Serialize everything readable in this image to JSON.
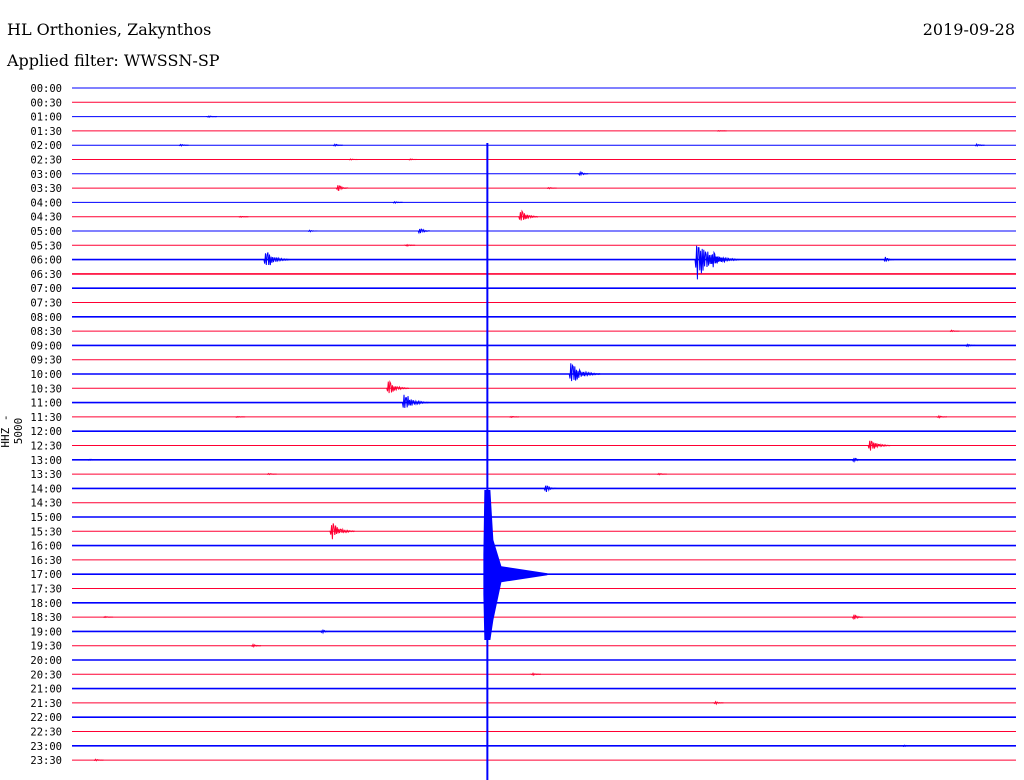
{
  "header": {
    "station": "HL Orthonies, Zakynthos",
    "filter": "Applied filter: WWSSN-SP",
    "date": "2019-09-28"
  },
  "chart_data": {
    "type": "line",
    "title": "HL Orthonies, Zakynthos",
    "ylabel": "HHZ - 5000",
    "minutes_per_row": 30,
    "colors": {
      "even": "#0000ff",
      "odd": "#ff0033"
    },
    "rows": [
      "00:00",
      "00:30",
      "01:00",
      "01:30",
      "02:00",
      "02:30",
      "03:00",
      "03:30",
      "04:00",
      "04:30",
      "05:00",
      "05:30",
      "06:00",
      "06:30",
      "07:00",
      "07:30",
      "08:00",
      "08:30",
      "09:00",
      "09:30",
      "10:00",
      "10:30",
      "11:00",
      "11:30",
      "12:00",
      "12:30",
      "13:00",
      "13:30",
      "14:00",
      "14:30",
      "15:00",
      "15:30",
      "16:00",
      "16:30",
      "17:00",
      "17:30",
      "18:00",
      "18:30",
      "19:00",
      "19:30",
      "20:00",
      "20:30",
      "21:00",
      "21:30",
      "22:00",
      "22:30",
      "23:00",
      "23:30"
    ],
    "events": [
      {
        "row": "01:00",
        "minute": 4.3,
        "amp": 4
      },
      {
        "row": "01:30",
        "minute": 20.5,
        "amp": 2
      },
      {
        "row": "02:00",
        "minute": 3.4,
        "amp": 5
      },
      {
        "row": "02:00",
        "minute": 8.3,
        "amp": 6
      },
      {
        "row": "02:00",
        "minute": 28.7,
        "amp": 7
      },
      {
        "row": "02:30",
        "minute": 8.8,
        "amp": 3
      },
      {
        "row": "02:30",
        "minute": 10.7,
        "amp": 3
      },
      {
        "row": "03:00",
        "minute": 16.1,
        "amp": 10
      },
      {
        "row": "03:30",
        "minute": 8.4,
        "amp": 14
      },
      {
        "row": "03:30",
        "minute": 15.1,
        "amp": 4
      },
      {
        "row": "04:00",
        "minute": 10.2,
        "amp": 5
      },
      {
        "row": "04:30",
        "minute": 5.3,
        "amp": 3
      },
      {
        "row": "04:30",
        "minute": 14.2,
        "amp": 22
      },
      {
        "row": "05:00",
        "minute": 7.5,
        "amp": 4
      },
      {
        "row": "05:00",
        "minute": 11.0,
        "amp": 14
      },
      {
        "row": "05:30",
        "minute": 10.6,
        "amp": 4
      },
      {
        "row": "06:00",
        "minute": 6.1,
        "amp": 30
      },
      {
        "row": "06:00",
        "minute": 19.8,
        "amp": 50
      },
      {
        "row": "06:00",
        "minute": 20.3,
        "amp": 28
      },
      {
        "row": "06:00",
        "minute": 25.8,
        "amp": 12
      },
      {
        "row": "08:30",
        "minute": 27.9,
        "amp": 4
      },
      {
        "row": "09:00",
        "minute": 28.4,
        "amp": 6
      },
      {
        "row": "10:00",
        "minute": 15.8,
        "amp": 35
      },
      {
        "row": "10:30",
        "minute": 10.0,
        "amp": 25
      },
      {
        "row": "11:00",
        "minute": 10.5,
        "amp": 30
      },
      {
        "row": "11:30",
        "minute": 5.2,
        "amp": 3
      },
      {
        "row": "11:30",
        "minute": 13.9,
        "amp": 3
      },
      {
        "row": "11:30",
        "minute": 27.5,
        "amp": 5
      },
      {
        "row": "12:30",
        "minute": 25.3,
        "amp": 25
      },
      {
        "row": "13:00",
        "minute": 0.5,
        "amp": 4
      },
      {
        "row": "13:00",
        "minute": 24.8,
        "amp": 10
      },
      {
        "row": "13:30",
        "minute": 6.2,
        "amp": 3
      },
      {
        "row": "13:30",
        "minute": 18.6,
        "amp": 4
      },
      {
        "row": "14:00",
        "minute": 15.0,
        "amp": 15
      },
      {
        "row": "15:30",
        "minute": 8.2,
        "amp": 28
      },
      {
        "row": "18:30",
        "minute": 1.0,
        "amp": 3
      },
      {
        "row": "18:30",
        "minute": 24.8,
        "amp": 12
      },
      {
        "row": "19:00",
        "minute": 7.9,
        "amp": 8
      },
      {
        "row": "19:30",
        "minute": 5.7,
        "amp": 6
      },
      {
        "row": "20:30",
        "minute": 14.6,
        "amp": 5
      },
      {
        "row": "21:30",
        "minute": 20.4,
        "amp": 7
      },
      {
        "row": "23:00",
        "minute": 26.4,
        "amp": 4
      },
      {
        "row": "23:30",
        "minute": 0.7,
        "amp": 4
      }
    ],
    "main_event": {
      "row": "17:00",
      "minute": 13.2,
      "amp": 300
    }
  }
}
